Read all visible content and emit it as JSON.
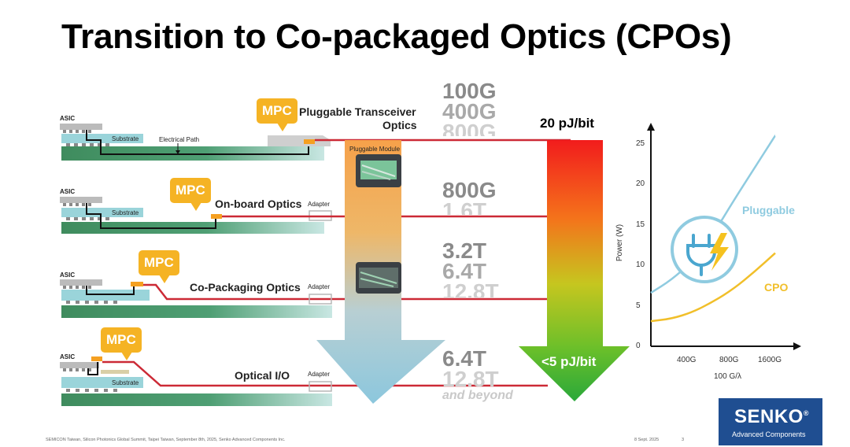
{
  "title": "Transition to Co-packaged Optics (CPOs)",
  "rows": [
    {
      "name": "Pluggable Transceiver",
      "name2": "Optics",
      "asic": "ASIC",
      "substrate": "Substrate",
      "path": "Electrical Path",
      "module": "Pluggable Module",
      "mpc": "MPC"
    },
    {
      "name": "On-board Optics",
      "asic": "ASIC",
      "substrate": "Substrate",
      "adapter": "Adapter",
      "mpc": "MPC"
    },
    {
      "name": "Co-Packaging Optics",
      "asic": "ASIC",
      "adapter": "Adapter",
      "mpc": "MPC"
    },
    {
      "name": "Optical I/O",
      "asic": "ASIC",
      "substrate": "Substrate",
      "adapter": "Adapter",
      "mpc": "MPC"
    }
  ],
  "speeds": {
    "row1": [
      "100G",
      "400G",
      "800G"
    ],
    "row2": [
      "800G",
      "1.6T"
    ],
    "row3": [
      "3.2T",
      "6.4T",
      "12.8T"
    ],
    "row4": [
      "6.4T",
      "12.8T"
    ],
    "beyond": "and beyond"
  },
  "energy": {
    "top": "20 pJ/bit",
    "bottom": "<5 pJ/bit"
  },
  "chart_data": {
    "type": "line",
    "ylabel": "Power (W)",
    "xlabel": "100 G/λ",
    "yticks": [
      "0",
      "5",
      "10",
      "15",
      "20",
      "25"
    ],
    "ylim": [
      0,
      27
    ],
    "xticks": [
      "400G",
      "800G",
      "1600G"
    ],
    "grid": false,
    "series": [
      {
        "name": "Pluggable",
        "color": "#8fcbe0",
        "x": [
          0,
          1,
          2,
          3,
          4,
          5,
          6
        ],
        "values": [
          6.6,
          8.2,
          10.5,
          13.8,
          18.0,
          22.0,
          26.0
        ]
      },
      {
        "name": "CPO",
        "color": "#f1bf2a",
        "x": [
          0,
          1,
          2,
          3,
          4,
          5,
          6
        ],
        "values": [
          3.1,
          3.4,
          4.2,
          5.5,
          7.1,
          9.2,
          11.5
        ]
      }
    ],
    "icon": "plug-bolt-icon"
  },
  "footer": {
    "text": "SEMICON Taiwan, Silicon Photonics Global Summit, Taipei Taiwan, September 8th, 2025, Senko Advanced Components Inc.",
    "date": "8 Sept. 2025",
    "page": "3"
  },
  "logo": {
    "name": "SENKO",
    "mark": "®",
    "sub": "Advanced Components"
  },
  "colors": {
    "mpc": "#f5b324",
    "substrate": "#9ad4da",
    "board": "#3f8c5e",
    "electrical": "#cc2a36",
    "arrow_blue": "#8cc7dd",
    "logo": "#1f4e91"
  }
}
